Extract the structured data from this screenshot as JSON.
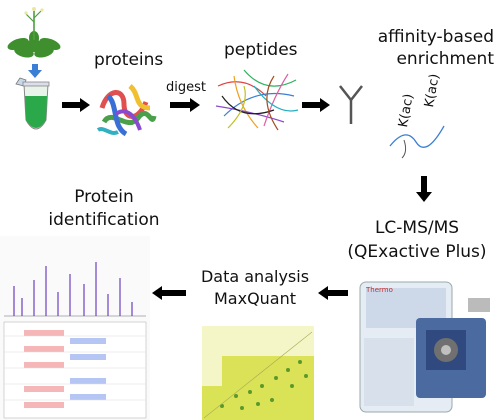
{
  "labels": {
    "proteins": "proteins",
    "digest": "digest",
    "peptides": "peptides",
    "enrichment_line1": "affinity-based",
    "enrichment_line2": "enrichment",
    "kac_left": "K(ac)",
    "kac_right": "K(ac)",
    "lcms_line1": "LC-MS/MS",
    "lcms_line2": "(QExactive Plus)",
    "analysis_line1": "Data analysis",
    "analysis_line2": "MaxQuant",
    "protein_line1": "Protein",
    "protein_line2": "identification",
    "instrument_brand": "Thermo"
  },
  "colors": {
    "arrow": "#000000",
    "plant_green": "#3f8f2f",
    "tube_liquid": "#2aa84a",
    "blue_arrow": "#3a7fd5",
    "scatter_yellow": "#d8e04a",
    "scatter_green": "#5a9a2a",
    "ms_peaks": "#6a3fbf",
    "table_red": "#f4b6b6",
    "table_blue": "#b6c6f4"
  },
  "icons": {
    "plant": "plant-icon",
    "tube": "sample-tube-icon",
    "protein": "protein-structure-icon",
    "peptides": "peptide-fragments-icon",
    "antibody": "antibody-icon",
    "instrument": "mass-spectrometer-icon",
    "scatter": "scatter-plot-icon",
    "spectrum": "ms-spectrum-icon"
  }
}
